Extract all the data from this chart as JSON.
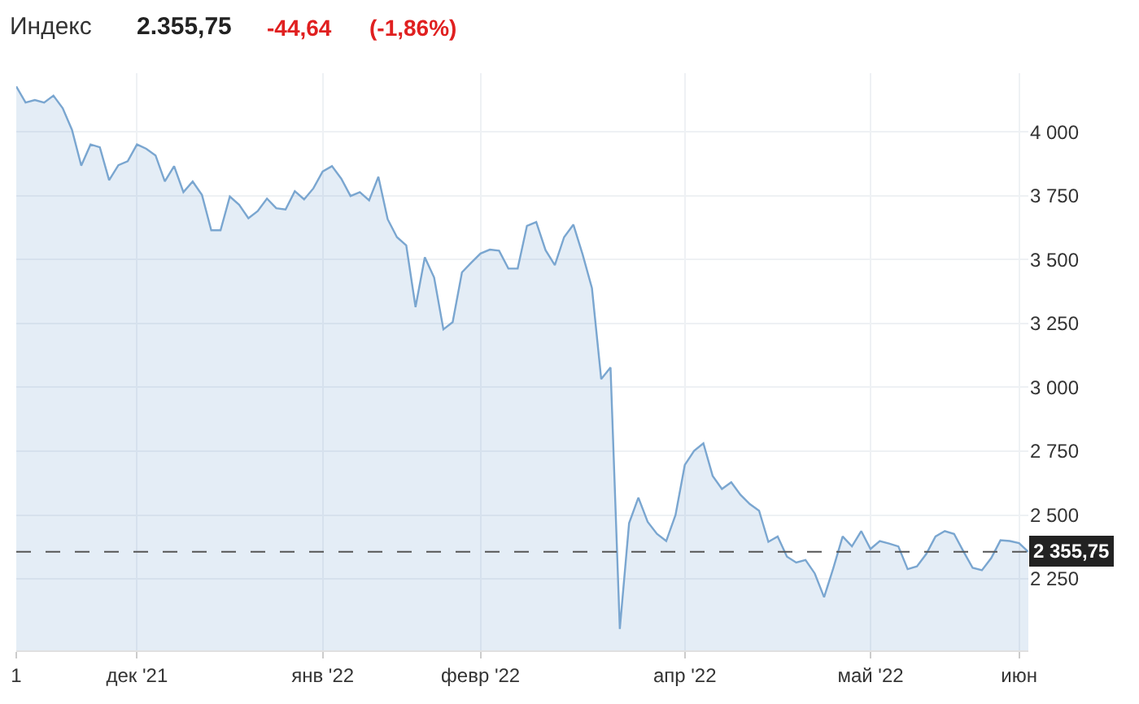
{
  "chart_data": {
    "type": "area",
    "title": "Индекс",
    "annotations": [
      "2.355,75",
      "-44,64",
      "(-1,86%)"
    ],
    "categories": [
      "1",
      null,
      null,
      null,
      null,
      null,
      null,
      null,
      null,
      null,
      null,
      null,
      null,
      "дек '21",
      null,
      null,
      null,
      null,
      null,
      null,
      null,
      null,
      null,
      null,
      null,
      null,
      null,
      null,
      null,
      null,
      null,
      null,
      null,
      "янв '22",
      null,
      null,
      null,
      null,
      null,
      null,
      null,
      null,
      null,
      null,
      null,
      null,
      null,
      null,
      null,
      null,
      "февр '22",
      null,
      null,
      null,
      null,
      null,
      null,
      null,
      null,
      null,
      null,
      null,
      null,
      null,
      null,
      null,
      null,
      null,
      null,
      null,
      null,
      null,
      "апр '22",
      null,
      null,
      null,
      null,
      null,
      null,
      null,
      null,
      null,
      null,
      null,
      null,
      null,
      null,
      null,
      null,
      null,
      null,
      null,
      "май '22",
      null,
      null,
      null,
      null,
      null,
      null,
      null,
      null,
      null,
      null,
      null,
      null,
      null,
      null,
      null,
      "июн",
      null
    ],
    "series": [
      {
        "color": "#7aa6d0",
        "values": [
          4178,
          4115,
          4125,
          4115,
          4142,
          4093,
          4008,
          3868,
          3951,
          3940,
          3811,
          3870,
          3885,
          3951,
          3934,
          3908,
          3806,
          3866,
          3764,
          3806,
          3753,
          3615,
          3615,
          3747,
          3715,
          3662,
          3690,
          3739,
          3701,
          3696,
          3768,
          3736,
          3779,
          3845,
          3866,
          3817,
          3749,
          3764,
          3732,
          3824,
          3658,
          3588,
          3556,
          3314,
          3509,
          3430,
          3227,
          3255,
          3450,
          3488,
          3524,
          3539,
          3535,
          3465,
          3465,
          3632,
          3647,
          3537,
          3478,
          3588,
          3637,
          3520,
          3388,
          3032,
          3078,
          2054,
          2468,
          2568,
          2473,
          2426,
          2398,
          2500,
          2696,
          2751,
          2781,
          2653,
          2602,
          2628,
          2579,
          2543,
          2517,
          2395,
          2416,
          2337,
          2314,
          2324,
          2271,
          2178,
          2293,
          2416,
          2377,
          2437,
          2367,
          2398,
          2388,
          2377,
          2288,
          2299,
          2347,
          2416,
          2437,
          2426,
          2358,
          2293,
          2284,
          2331,
          2401,
          2398,
          2390,
          2355.75
        ]
      }
    ],
    "ylim": [
      1970,
      4230
    ],
    "yticks": [
      {
        "value": 2250,
        "label": "2 250"
      },
      {
        "value": 2500,
        "label": "2 500"
      },
      {
        "value": 2750,
        "label": "2 750"
      },
      {
        "value": 3000,
        "label": "3 000"
      },
      {
        "value": 3250,
        "label": "3 250"
      },
      {
        "value": 3500,
        "label": "3 500"
      },
      {
        "value": 3750,
        "label": "3 750"
      },
      {
        "value": 4000,
        "label": "4 000"
      }
    ],
    "ref_lines": [
      {
        "axis": "y",
        "value": 2355.75,
        "label": "2 355,75",
        "color": "#555555",
        "line_style": "dashed"
      }
    ],
    "grid": true,
    "marker": "none"
  }
}
